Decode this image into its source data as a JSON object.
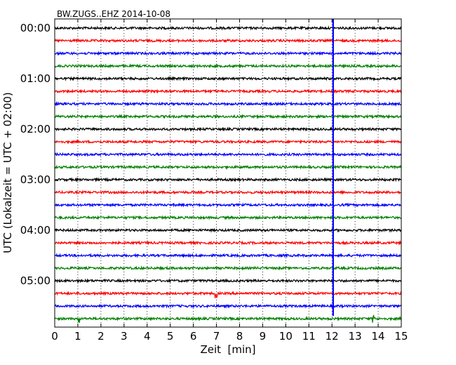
{
  "chart_data": {
    "type": "line",
    "title": "BW.ZUGS..EHZ 2014-10-08",
    "xlabel": "Zeit  [min]",
    "ylabel": "UTC (Lokalzeit = UTC + 02:00)",
    "xlim": [
      0,
      15
    ],
    "x_ticks": [
      "0",
      "1",
      "2",
      "3",
      "4",
      "5",
      "6",
      "7",
      "8",
      "9",
      "10",
      "11",
      "12",
      "13",
      "14",
      "15"
    ],
    "y_ticks": [
      "00:00",
      "01:00",
      "02:00",
      "03:00",
      "04:00",
      "05:00"
    ],
    "trace_interval_min": 15,
    "trace_count": 24,
    "trace_colors": [
      "#000000",
      "#ff0000",
      "#0000ff",
      "#008000"
    ],
    "grid": true,
    "event_marker": {
      "x": 12.05,
      "color": "#0000ff"
    },
    "spikes": [
      {
        "trace": 21,
        "x": 7.0,
        "amplitude": 2.5
      },
      {
        "trace": 23,
        "x": 1.05,
        "amplitude": 2.2
      },
      {
        "trace": 23,
        "x": 13.8,
        "amplitude": 2.0
      }
    ]
  }
}
